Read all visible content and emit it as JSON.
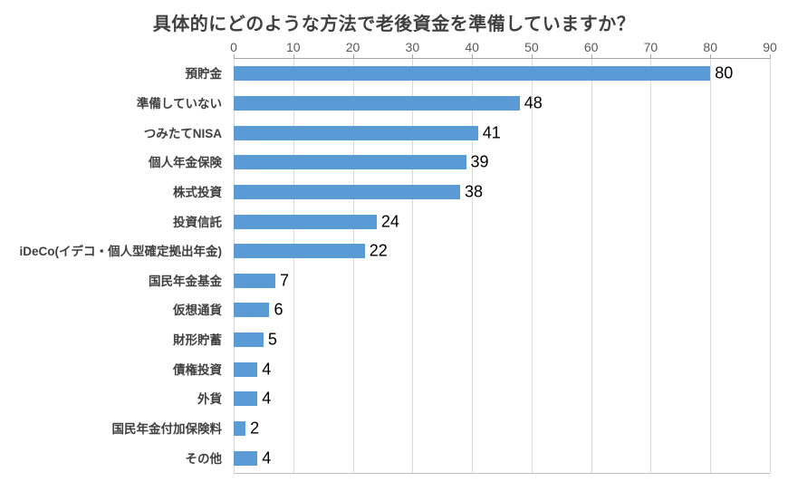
{
  "chart_data": {
    "type": "bar",
    "orientation": "horizontal",
    "title": "具体的にどのような方法で老後資金を準備していますか？",
    "categories": [
      "預貯金",
      "準備していない",
      "つみたてNISA",
      "個人年金保険",
      "株式投資",
      "投資信託",
      "iDeCo(イデコ・個人型確定拠出年金)",
      "国民年金基金",
      "仮想通貨",
      "財形貯蓄",
      "債権投資",
      "外貨",
      "国民年金付加保険料",
      "その他"
    ],
    "values": [
      80,
      48,
      41,
      39,
      38,
      24,
      22,
      7,
      6,
      5,
      4,
      4,
      2,
      4
    ],
    "xlabel": "",
    "ylabel": "",
    "xlim": [
      0,
      90
    ],
    "x_ticks": [
      0,
      10,
      20,
      30,
      40,
      50,
      60,
      70,
      80,
      90
    ],
    "grid": true,
    "legend": false,
    "axis_position": "top",
    "bar_color": "#5b9bd5",
    "value_label_color": "#000000",
    "grid_color": "#d9d9d9",
    "axis_color": "#a6a6a6",
    "tick_label_color": "#595959",
    "category_label_color": "#404040",
    "title_color": "#404040"
  }
}
